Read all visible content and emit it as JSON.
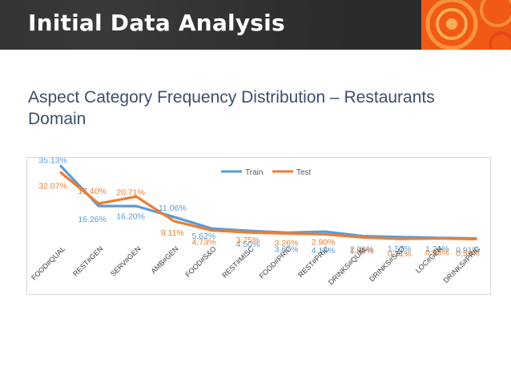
{
  "slide": {
    "title": "Initial Data Analysis",
    "subtitle": "Aspect Category Frequency Distribution – Restaurants Domain"
  },
  "colors": {
    "train": "#5b9bd5",
    "test": "#ed7d31",
    "header_bg": "#2f2f2f",
    "accent": "#f05a14",
    "subtitle_text": "#3e4e6e"
  },
  "chart_data": {
    "type": "line",
    "title": "",
    "xlabel": "",
    "ylabel": "",
    "ylim": [
      0,
      36
    ],
    "legend_position": "top-center",
    "categories": [
      "FOOD#QUAL",
      "REST#GEN",
      "SERV#GEN",
      "AMB#GEN",
      "FOOD#S&O",
      "REST#MISC",
      "FOOD#PRIC",
      "REST#PRIC",
      "DRINKS#QUAL",
      "DRINKS#S&O",
      "LOC#GEN",
      "DRINKS#PRIC"
    ],
    "series": [
      {
        "name": "Train",
        "values": [
          35.13,
          16.26,
          16.2,
          11.06,
          5.62,
          4.5,
          3.67,
          4.14,
          2.06,
          1.57,
          1.21,
          0.91
        ],
        "labels": [
          "35.13%",
          "16.26%",
          "16.20%",
          "11.06%",
          "5.62%",
          "4.50%",
          "3.67%",
          "4.14%",
          "2.06%",
          "1.57%",
          "1.21%",
          "0.91%"
        ]
      },
      {
        "name": "Test",
        "values": [
          32.07,
          17.4,
          20.71,
          9.11,
          4.73,
          3.75,
          3.26,
          2.9,
          1.42,
          0.71,
          0.95,
          0.59
        ],
        "labels": [
          "32.07%",
          "17.40%",
          "20.71%",
          "9.11%",
          "4.73%",
          "3.75%",
          "3.26%",
          "2.90%",
          "1.42%",
          "0.71%",
          "0.95%",
          "0.59%"
        ]
      }
    ]
  }
}
